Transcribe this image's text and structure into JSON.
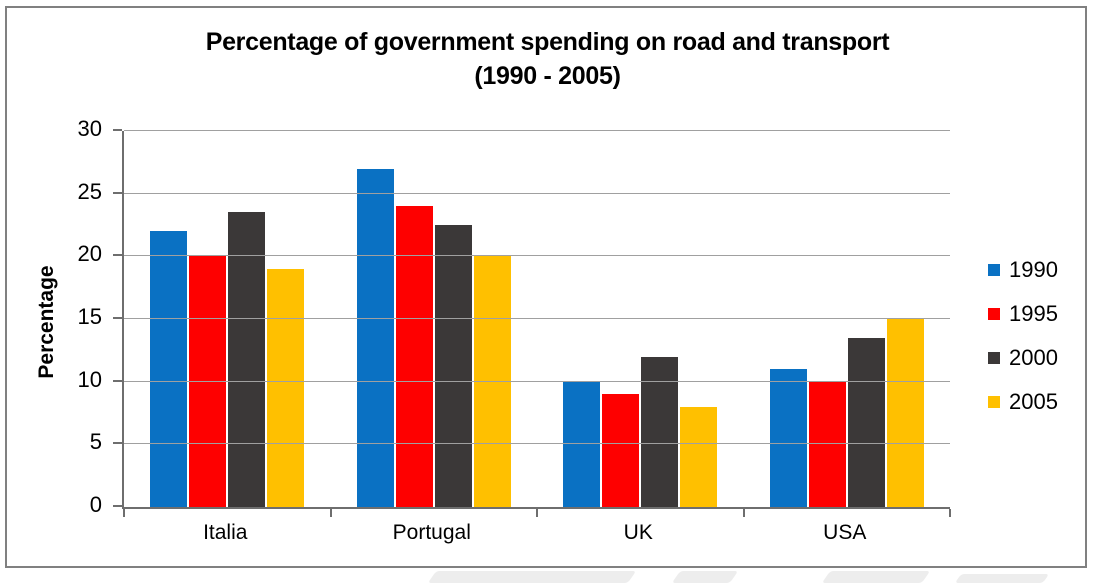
{
  "chart_data": {
    "type": "bar",
    "title_line1": "Percentage of government spending on road and transport",
    "title_line2": "(1990 - 2005)",
    "ylabel": "Percentage",
    "xlabel": "",
    "categories": [
      "Italia",
      "Portugal",
      "UK",
      "USA"
    ],
    "series": [
      {
        "name": "1990",
        "color": "#0a71c3",
        "values": [
          22,
          27,
          10,
          11
        ]
      },
      {
        "name": "1995",
        "color": "#fe0000",
        "values": [
          20,
          24,
          9,
          10
        ]
      },
      {
        "name": "2000",
        "color": "#3b3838",
        "values": [
          23.5,
          22.5,
          12,
          13.5
        ]
      },
      {
        "name": "2005",
        "color": "#ffc000",
        "values": [
          19,
          20,
          8,
          15
        ]
      }
    ],
    "ylim": [
      0,
      30
    ],
    "yticks": [
      0,
      5,
      10,
      15,
      20,
      25,
      30
    ],
    "grid": true,
    "legend_position": "right"
  },
  "colors": {
    "gridline": "#a0a0a0",
    "axis": "#6e6e6e",
    "frame_border": "#808080",
    "watermark": "#ededed",
    "background": "#ffffff",
    "text": "#000000"
  }
}
